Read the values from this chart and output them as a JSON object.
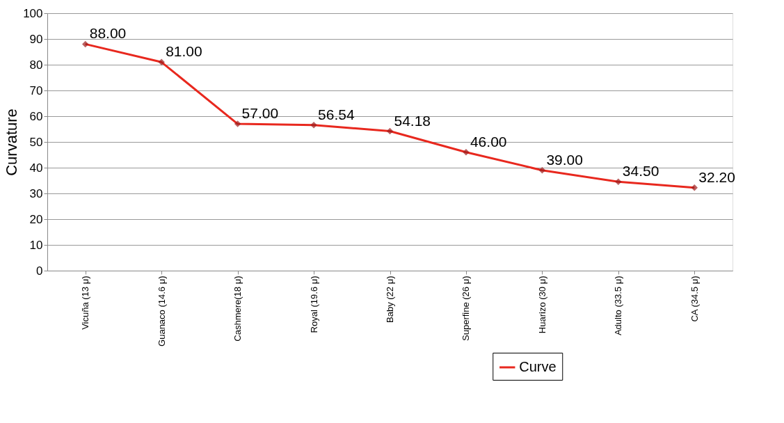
{
  "chart_data": {
    "type": "line",
    "ylabel": "Curvature",
    "categories": [
      "Vicuña (13 μ)",
      "Guanaco (14.6 μ)",
      "Cashmere(18 μ)",
      "Royal (19.6 μ)",
      "Baby (22 μ)",
      "Superfine (26 μ)",
      "Huarizo (30 μ)",
      "Adulto (33.5 μ)",
      "CA (34.5 μ)"
    ],
    "series": [
      {
        "name": "Curve",
        "color": "#e8281e",
        "values": [
          88.0,
          81.0,
          57.0,
          56.54,
          54.18,
          46.0,
          39.0,
          34.5,
          32.2
        ],
        "value_labels": [
          "88.00",
          "81.00",
          "57.00",
          "56.54",
          "54.18",
          "46.00",
          "39.00",
          "34.50",
          "32.20"
        ]
      }
    ],
    "ylim": [
      0,
      100
    ],
    "yticks": [
      0,
      10,
      20,
      30,
      40,
      50,
      60,
      70,
      80,
      90,
      100
    ],
    "grid": "y",
    "legend": "bottom",
    "marker": "diamond",
    "line_style": "solid"
  }
}
